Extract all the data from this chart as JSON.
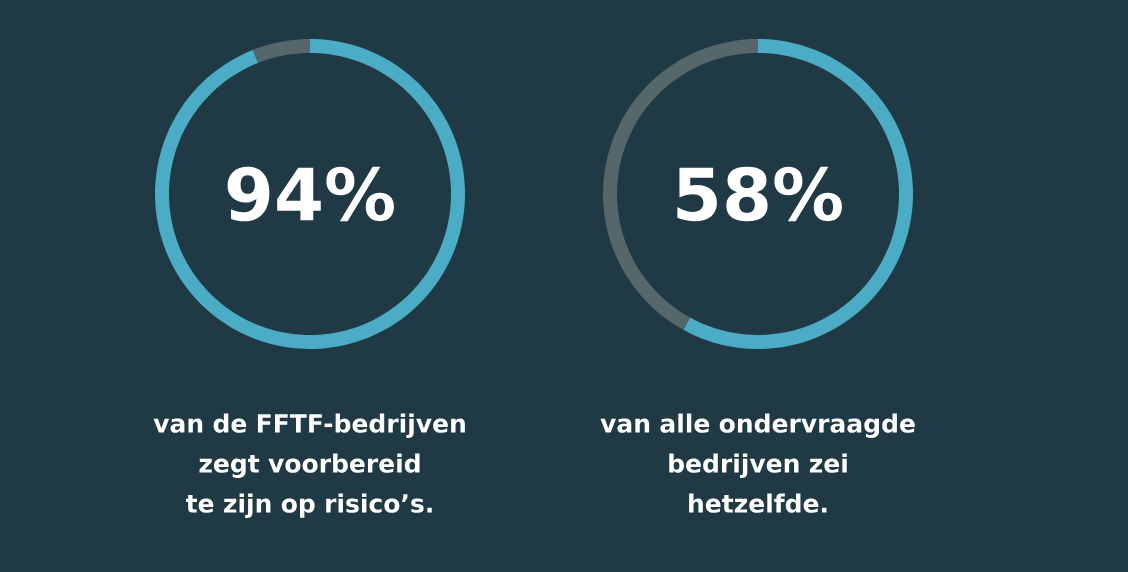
{
  "chart_data": [
    {
      "type": "donut",
      "categories": [
        null,
        null
      ],
      "values": [
        94,
        6
      ],
      "colors": [
        "#4bacc6",
        "#56676c"
      ],
      "value_labels": [
        "94%",
        null
      ],
      "annotations": [
        "van de FFTF-bedrijven zegt voorbereid te zijn op risico’s."
      ]
    },
    {
      "type": "donut",
      "categories": [
        null,
        null
      ],
      "values": [
        58,
        42
      ],
      "colors": [
        "#4bacc6",
        "#56676c"
      ],
      "value_labels": [
        "58%",
        null
      ],
      "annotations": [
        "van alle ondervraagde bedrijven zei hetzelfde."
      ]
    }
  ]
}
